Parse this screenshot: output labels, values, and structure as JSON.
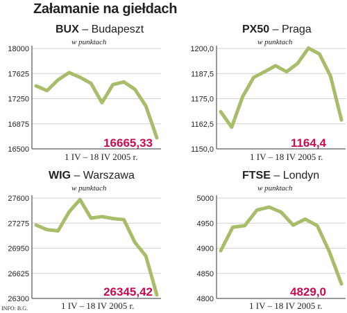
{
  "title": "Załamanie na giełdach",
  "source": "INFO: B.G.",
  "line_color": "#a8bd6a",
  "value_color": "#cc0a50",
  "chart_data": [
    {
      "type": "line",
      "name": "BUX",
      "city": "Budapeszt",
      "unit": "w punktach",
      "period": "1 IV – 18 IV  2005 r.",
      "ylim": [
        16500,
        18000
      ],
      "yticks": [
        "18000",
        "17625",
        "17250",
        "16875",
        "16500"
      ],
      "values": [
        17440,
        17370,
        17530,
        17640,
        17570,
        17480,
        17190,
        17460,
        17500,
        17390,
        17140,
        16665.33
      ],
      "last_label": "16665,33"
    },
    {
      "type": "line",
      "name": "PX50",
      "city": "Praga",
      "unit": "w punktach",
      "period": "1 IV – 18 IV  2005 r.",
      "ylim": [
        1150.0,
        1200.0
      ],
      "yticks": [
        "1200,0",
        "1187,5",
        "1175,0",
        "1162,5",
        "1150,0"
      ],
      "values": [
        1168.5,
        1160.8,
        1176.0,
        1185.6,
        1188.4,
        1191.4,
        1188.4,
        1192.5,
        1200.2,
        1197.2,
        1186.3,
        1164.4
      ],
      "last_label": "1164,4"
    },
    {
      "type": "line",
      "name": "WIG",
      "city": "Warszawa",
      "unit": "w punktach",
      "period": "1 IV – 18 IV  2005 r.",
      "ylim": [
        26300,
        27600
      ],
      "yticks": [
        "27600",
        "27275",
        "26950",
        "26625",
        "26300"
      ],
      "values": [
        27250,
        27190,
        27175,
        27420,
        27580,
        27340,
        27360,
        27335,
        27320,
        27025,
        26850,
        26345.42
      ],
      "last_label": "26345,42"
    },
    {
      "type": "line",
      "name": "FTSE",
      "city": "Londyn",
      "unit": "w punktach",
      "period": "1 IV – 18 IV  2005 r.",
      "ylim": [
        4800,
        5000
      ],
      "yticks": [
        "5000",
        "4950",
        "4900",
        "4850",
        "4800"
      ],
      "values": [
        4895,
        4942,
        4945,
        4976,
        4982,
        4972,
        4946,
        4958,
        4945,
        4893,
        4829
      ],
      "last_label": "4829,0"
    }
  ]
}
